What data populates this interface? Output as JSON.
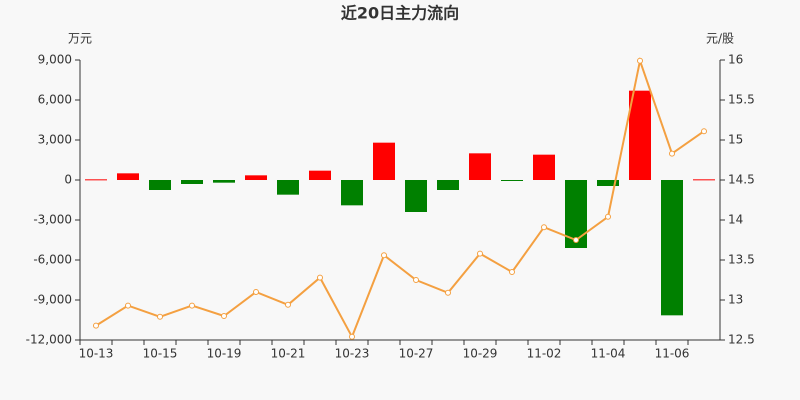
{
  "chart_data": {
    "type": "bar-line",
    "title": "近20日主力流向",
    "y_label": "万元",
    "y2_label": "元/股",
    "categories": [
      "10-13",
      null,
      "10-15",
      null,
      "10-19",
      null,
      "10-21",
      null,
      "10-23",
      null,
      "10-27",
      null,
      "10-29",
      null,
      "11-02",
      null,
      "11-04",
      null,
      "11-06",
      null
    ],
    "series": [
      {
        "type": "bar",
        "color_up": "#ff0000",
        "color_down": "#008000",
        "values": [
          50,
          500,
          -750,
          -300,
          -200,
          350,
          -1100,
          700,
          -1900,
          2800,
          -2400,
          -750,
          2000,
          -50,
          1900,
          -5100,
          -450,
          6700,
          -10150,
          50
        ]
      },
      {
        "type": "line",
        "axis": "y2",
        "color": "#f4a041",
        "values": [
          12.68,
          12.93,
          12.79,
          12.93,
          12.8,
          13.1,
          12.94,
          13.28,
          12.54,
          13.56,
          13.25,
          13.09,
          13.58,
          13.35,
          13.91,
          13.75,
          14.04,
          15.99,
          14.83,
          15.11
        ]
      }
    ],
    "ylim": [
      -12000,
      9000
    ],
    "yticks": [
      {
        "value": -12000,
        "label": "-12,000"
      },
      {
        "value": -9000,
        "label": "-9,000"
      },
      {
        "value": -6000,
        "label": "-6,000"
      },
      {
        "value": -3000,
        "label": "-3,000"
      },
      0,
      {
        "value": 3000,
        "label": "3,000"
      },
      {
        "value": 6000,
        "label": "6,000"
      },
      {
        "value": 9000,
        "label": "9,000"
      }
    ],
    "y2lim": [
      12.5,
      16
    ],
    "y2ticks": [
      12.5,
      13,
      13.5,
      14,
      14.5,
      15,
      15.5,
      16
    ]
  }
}
